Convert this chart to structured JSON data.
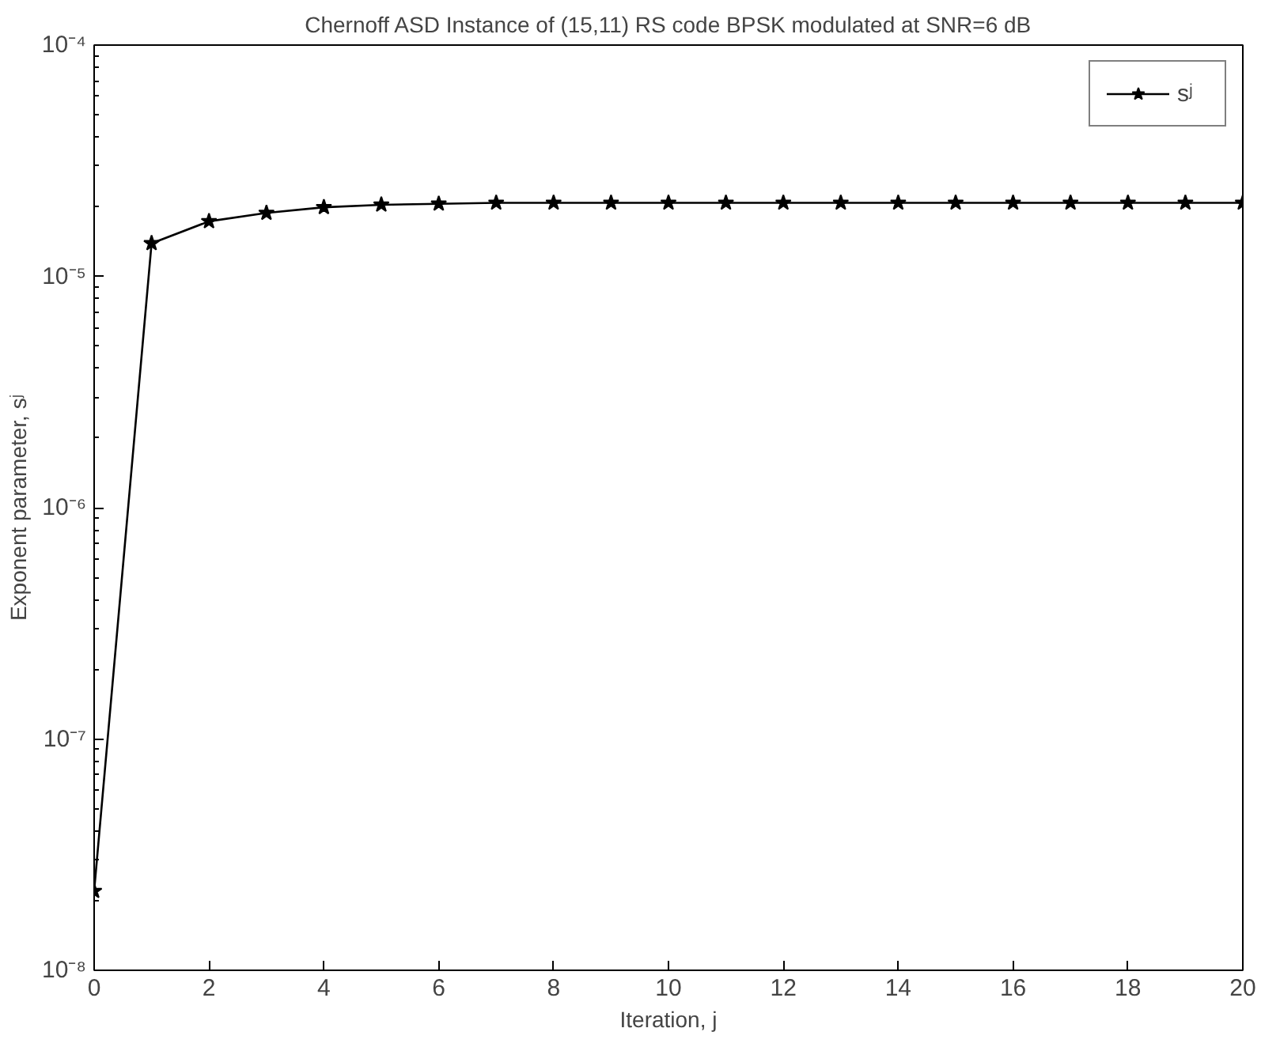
{
  "chart_data": {
    "type": "line",
    "title": "Chernoff ASD Instance of (15,11) RS code BPSK modulated at SNR=6 dB",
    "xlabel": "Iteration, j",
    "ylabel": "Exponent parameter, sʲ",
    "x": [
      0,
      1,
      2,
      3,
      4,
      5,
      6,
      7,
      8,
      9,
      10,
      11,
      12,
      13,
      14,
      15,
      16,
      17,
      18,
      19,
      20
    ],
    "series": [
      {
        "name": "sʲ",
        "color": "#000000",
        "values": [
          2.2e-08,
          1.39e-05,
          1.73e-05,
          1.88e-05,
          1.99e-05,
          2.04e-05,
          2.06e-05,
          2.08e-05,
          2.08e-05,
          2.08e-05,
          2.08e-05,
          2.08e-05,
          2.08e-05,
          2.08e-05,
          2.08e-05,
          2.08e-05,
          2.08e-05,
          2.08e-05,
          2.08e-05,
          2.08e-05,
          2.08e-05
        ]
      }
    ],
    "log": "y",
    "xlim": [
      0,
      20
    ],
    "xticks": [
      0,
      2,
      4,
      6,
      8,
      10,
      12,
      14,
      16,
      18,
      20
    ],
    "ylim": [
      1e-08,
      0.0001
    ],
    "yticks": [
      {
        "value": 1e-08,
        "label": "10⁻⁸"
      },
      {
        "value": 1e-07,
        "label": "10⁻⁷"
      },
      {
        "value": 1e-06,
        "label": "10⁻⁶"
      },
      {
        "value": 1e-05,
        "label": "10⁻⁵"
      },
      {
        "value": 0.0001,
        "label": "10⁻⁴"
      }
    ],
    "grid": false,
    "legend": "top right",
    "marker": "star",
    "line_style": "solid"
  }
}
